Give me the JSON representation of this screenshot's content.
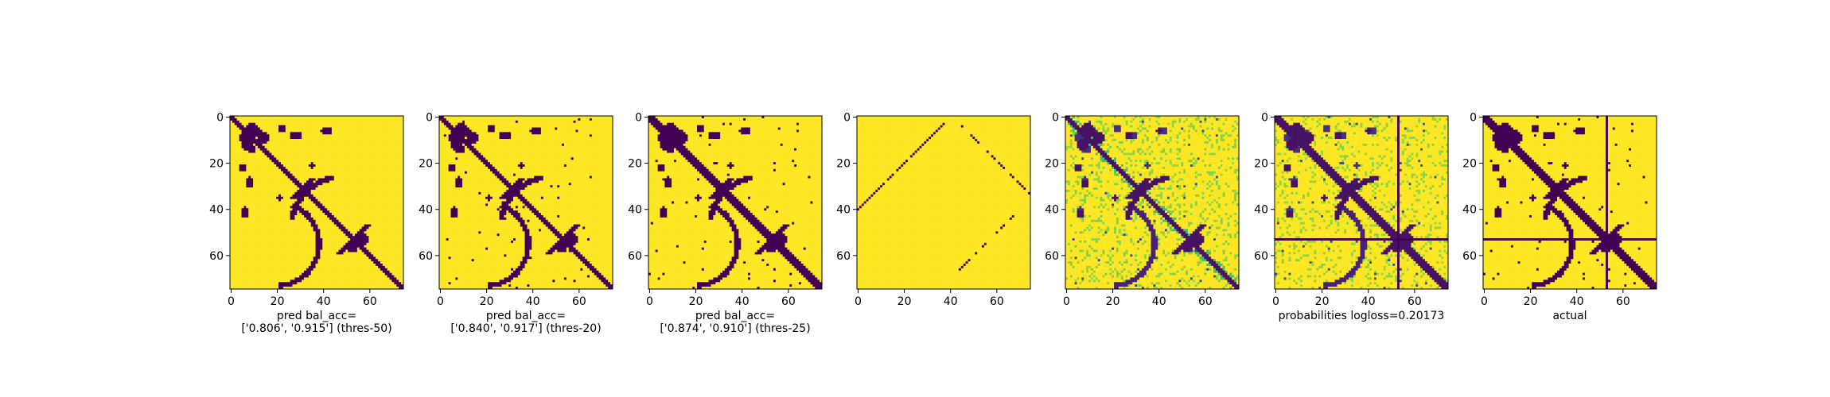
{
  "figure": {
    "background": "#ffffff",
    "colormap": "viridis",
    "colors": {
      "low": "#440154",
      "high": "#fde725"
    }
  },
  "chart_data": [
    {
      "type": "heatmap",
      "xticks": [
        0,
        20,
        40,
        60
      ],
      "yticks": [
        0,
        20,
        40,
        60
      ],
      "xlim": [
        0,
        75
      ],
      "ylim": [
        75,
        0
      ],
      "caption": [
        "pred bal_acc=",
        "['0.806', '0.915'] (thres-50)"
      ],
      "content": "binary contact map: thick main diagonal, cross near (30,30), blob cluster (5-12), arc contacts, off-diagonal bands near (50,55)"
    },
    {
      "type": "heatmap",
      "xticks": [
        0,
        20,
        40,
        60
      ],
      "yticks": [
        0,
        20,
        40,
        60
      ],
      "xlim": [
        0,
        75
      ],
      "ylim": [
        75,
        0
      ],
      "caption": [
        "pred bal_acc=",
        "['0.840', '0.917'] (thres-20)"
      ]
    },
    {
      "type": "heatmap",
      "xticks": [
        0,
        20,
        40,
        60
      ],
      "yticks": [
        0,
        20,
        40,
        60
      ],
      "xlim": [
        0,
        75
      ],
      "ylim": [
        75,
        0
      ],
      "caption": [
        "pred bal_acc=",
        "['0.874', '0.910'] (thres-25)"
      ]
    },
    {
      "type": "heatmap",
      "xticks": [
        0,
        20,
        40,
        60
      ],
      "yticks": [
        0,
        20,
        40,
        60
      ],
      "xlim": [
        0,
        75
      ],
      "ylim": [
        75,
        0
      ],
      "caption": []
    },
    {
      "type": "heatmap",
      "xticks": [
        0,
        20,
        40,
        60
      ],
      "yticks": [
        0,
        20,
        40,
        60
      ],
      "xlim": [
        0,
        75
      ],
      "ylim": [
        75,
        0
      ],
      "caption": []
    },
    {
      "type": "heatmap",
      "xticks": [
        0,
        20,
        40,
        60
      ],
      "yticks": [
        0,
        20,
        40,
        60
      ],
      "xlim": [
        0,
        75
      ],
      "ylim": [
        75,
        0
      ],
      "caption": [
        "probabilities logloss=0.20173"
      ]
    },
    {
      "type": "heatmap",
      "xticks": [
        0,
        20,
        40,
        60
      ],
      "yticks": [
        0,
        20,
        40,
        60
      ],
      "xlim": [
        0,
        75
      ],
      "ylim": [
        75,
        0
      ],
      "caption": [
        "actual"
      ]
    }
  ]
}
